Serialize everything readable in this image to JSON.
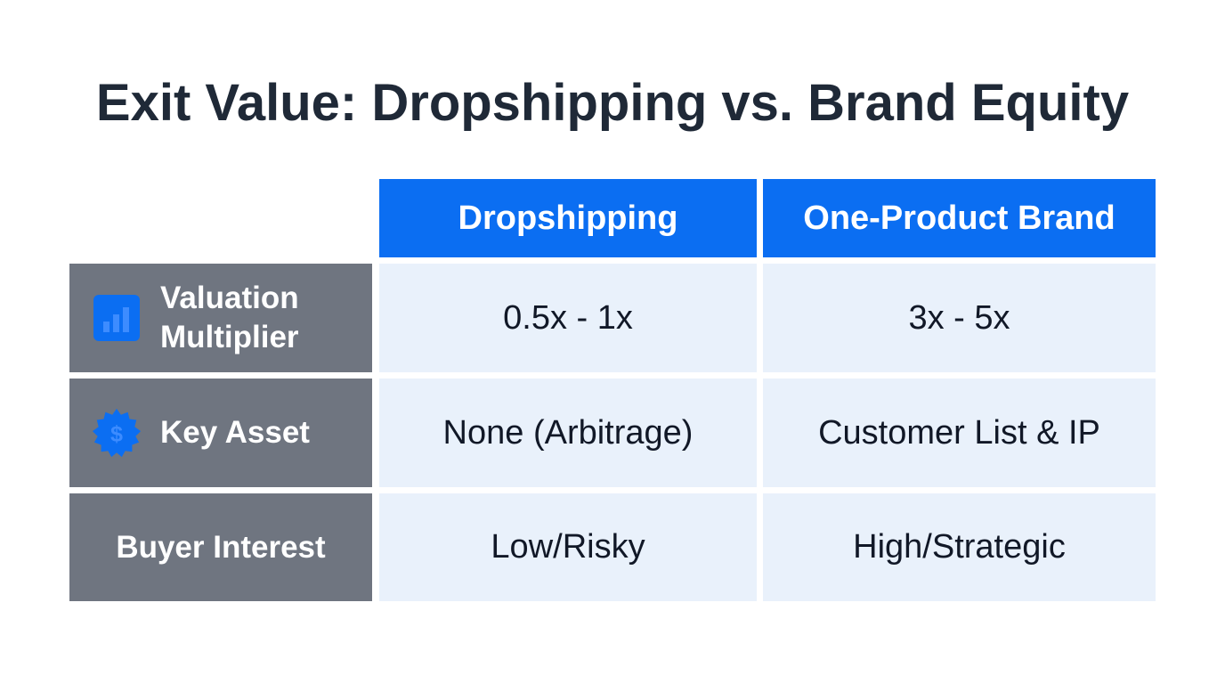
{
  "title": "Exit Value: Dropshipping vs. Brand Equity",
  "colors": {
    "header_blue": "#0b6ef2",
    "row_header_gray": "#6f7580",
    "cell_bg": "#e9f1fb",
    "title_text": "#1f2937"
  },
  "chart_data": {
    "type": "table",
    "title": "Exit Value: Dropshipping vs. Brand Equity",
    "columns": [
      "Dropshipping",
      "One-Product Brand"
    ],
    "rows": [
      {
        "label_lines": [
          "Valuation",
          "Multiplier"
        ],
        "icon": "bar-chart-icon",
        "values": [
          "0.5x - 1x",
          "3x - 5x"
        ]
      },
      {
        "label_lines": [
          "Key Asset"
        ],
        "icon": "dollar-badge-icon",
        "values": [
          "None (Arbitrage)",
          "Customer List & IP"
        ]
      },
      {
        "label_lines": [
          "Buyer Interest"
        ],
        "icon": "",
        "values": [
          "Low/Risky",
          "High/Strategic"
        ]
      }
    ]
  }
}
